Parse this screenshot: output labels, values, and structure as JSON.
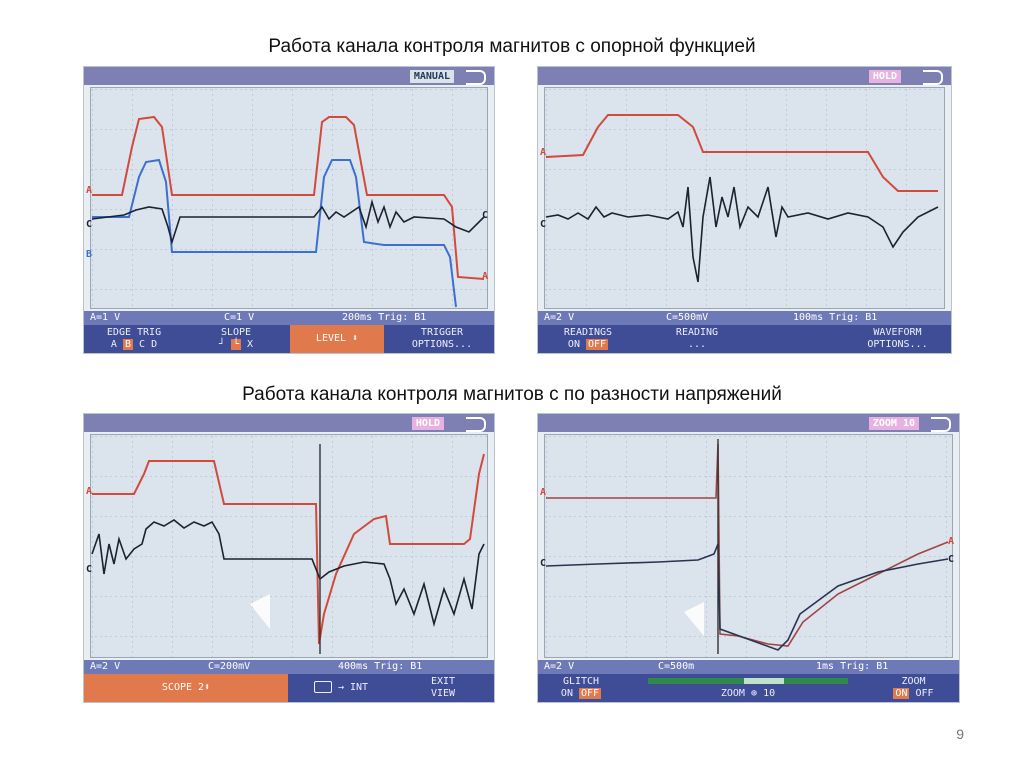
{
  "heading_top": "Работа канала контроля магнитов с опорной функцией",
  "heading_bottom": "Работа канала контроля магнитов с по разности напряжений",
  "page_number": "9",
  "colors": {
    "trace_a": "#d14a3c",
    "trace_b": "#3d6fd0",
    "trace_c": "#1b2230",
    "softkey_bar": "#3e4d95",
    "status_bar": "#6e7ab8",
    "highlight": "#e07a4c"
  },
  "scopes": [
    {
      "mode": "MANUAL",
      "status": {
        "a": "A=1 V",
        "c": "C=1 V",
        "time": "200ms Trig: B1"
      },
      "markers": {
        "a": "A",
        "c": "C",
        "b": "B",
        "c_right": "C",
        "a_right": "A"
      },
      "softkeys": {
        "edge_trig_title": "EDGE TRIG",
        "edge_trig_opts": [
          "A",
          "B",
          "C",
          "D"
        ],
        "slope_title": "SLOPE",
        "slope_opts": [
          "┘",
          "└",
          "X"
        ],
        "level": "LEVEL ⬍",
        "trigger_options_1": "TRIGGER",
        "trigger_options_2": "OPTIONS..."
      }
    },
    {
      "mode": "HOLD",
      "status": {
        "a": "A=2 V",
        "c": "C=500mV",
        "time": "100ms Trig: B1"
      },
      "markers": {
        "a": "A",
        "c": "C"
      },
      "softkeys": {
        "readings_title": "READINGS",
        "readings_on": "ON",
        "readings_off": "OFF",
        "reading_title": "READING",
        "reading_sub": "...",
        "waveform_1": "WAVEFORM",
        "waveform_2": "OPTIONS..."
      }
    },
    {
      "mode": "HOLD",
      "status": {
        "a": "A=2 V",
        "c": "C=200mV",
        "time": "400ms Trig: B1"
      },
      "markers": {
        "a": "A",
        "c": "C"
      },
      "softkeys": {
        "scope": "SCOPE 2⬍",
        "camera": "→ INT",
        "exit_1": "EXIT",
        "exit_2": "VIEW"
      }
    },
    {
      "mode": "ZOOM 10",
      "status": {
        "a": "A=2 V",
        "c": "C=500m",
        "time": "1ms Trig: B1"
      },
      "markers": {
        "a": "A",
        "c": "C",
        "a_right": "A",
        "c_right": "C"
      },
      "softkeys": {
        "glitch_title": "GLITCH",
        "glitch_on": "ON",
        "glitch_off": "OFF",
        "zoom_label": "ZOOM",
        "zoom_value": "10",
        "zoom_title": "ZOOM",
        "zoom_on": "ON",
        "zoom_off": "OFF"
      }
    }
  ]
}
